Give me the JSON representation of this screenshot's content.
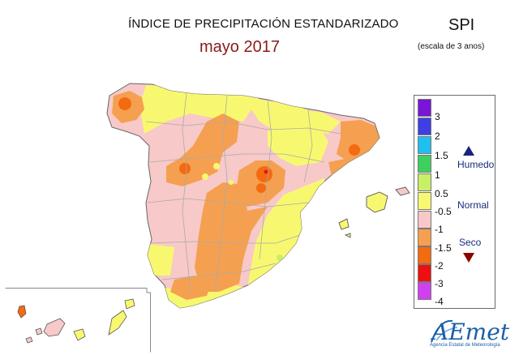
{
  "header": {
    "title": "ÍNDICE DE PRECIPITACIÓN ESTANDARIZADO",
    "subtitle": "mayo 2017",
    "index_name": "SPI",
    "scale_note": "(escala de 3 anos)"
  },
  "legend": {
    "ticks": [
      "3",
      "2",
      "1.5",
      "1",
      "0.5",
      "-0.5",
      "-1",
      "-1.5",
      "-2",
      "-3",
      "-4"
    ],
    "colors": [
      "#7a14d6",
      "#3f3fe6",
      "#1fc0f0",
      "#3fcf5f",
      "#c8f064",
      "#f8f870",
      "#f7c8c8",
      "#f5a050",
      "#f46a10",
      "#ee1010",
      "#d040f0"
    ],
    "categories": {
      "wet": "Humedo",
      "normal": "Normal",
      "dry": "Seco"
    },
    "wet_color": "#1a237e",
    "dry_color": "#8b0000"
  },
  "logo": {
    "name": "AEmet",
    "subtitle": "Agencia Estatal de Meteorología"
  }
}
